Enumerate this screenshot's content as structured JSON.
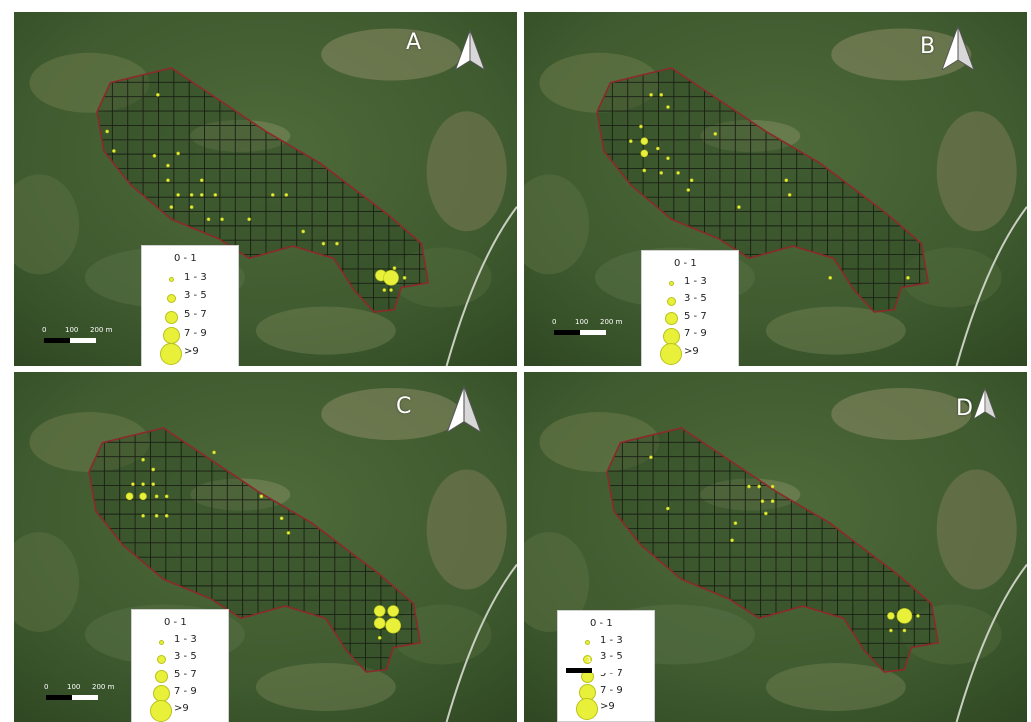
{
  "figure": {
    "panels": [
      {
        "letter": "A",
        "dots": [
          {
            "u": 0.03,
            "v": 0.26,
            "cls": 1
          },
          {
            "u": 0.18,
            "v": 0.11,
            "cls": 1
          },
          {
            "u": 0.05,
            "v": 0.34,
            "cls": 1
          },
          {
            "u": 0.17,
            "v": 0.36,
            "cls": 1
          },
          {
            "u": 0.24,
            "v": 0.35,
            "cls": 1
          },
          {
            "u": 0.21,
            "v": 0.4,
            "cls": 1
          },
          {
            "u": 0.21,
            "v": 0.46,
            "cls": 1
          },
          {
            "u": 0.24,
            "v": 0.52,
            "cls": 1
          },
          {
            "u": 0.28,
            "v": 0.52,
            "cls": 1
          },
          {
            "u": 0.31,
            "v": 0.52,
            "cls": 1
          },
          {
            "u": 0.35,
            "v": 0.52,
            "cls": 1
          },
          {
            "u": 0.22,
            "v": 0.57,
            "cls": 1
          },
          {
            "u": 0.28,
            "v": 0.57,
            "cls": 1
          },
          {
            "u": 0.31,
            "v": 0.46,
            "cls": 1
          },
          {
            "u": 0.33,
            "v": 0.62,
            "cls": 1
          },
          {
            "u": 0.37,
            "v": 0.62,
            "cls": 1
          },
          {
            "u": 0.45,
            "v": 0.62,
            "cls": 1
          },
          {
            "u": 0.52,
            "v": 0.52,
            "cls": 1
          },
          {
            "u": 0.56,
            "v": 0.52,
            "cls": 1
          },
          {
            "u": 0.61,
            "v": 0.67,
            "cls": 1
          },
          {
            "u": 0.67,
            "v": 0.72,
            "cls": 1
          },
          {
            "u": 0.71,
            "v": 0.72,
            "cls": 1
          },
          {
            "u": 0.86,
            "v": 0.86,
            "cls": 1
          },
          {
            "u": 0.88,
            "v": 0.82,
            "cls": 1
          },
          {
            "u": 0.84,
            "v": 0.85,
            "cls": 3
          },
          {
            "u": 0.87,
            "v": 0.86,
            "cls": 4
          },
          {
            "u": 0.91,
            "v": 0.86,
            "cls": 1
          },
          {
            "u": 0.85,
            "v": 0.91,
            "cls": 1
          },
          {
            "u": 0.87,
            "v": 0.91,
            "cls": 1
          }
        ]
      },
      {
        "letter": "B",
        "dots": [
          {
            "u": 0.16,
            "v": 0.11,
            "cls": 1
          },
          {
            "u": 0.19,
            "v": 0.11,
            "cls": 1
          },
          {
            "u": 0.21,
            "v": 0.16,
            "cls": 1
          },
          {
            "u": 0.13,
            "v": 0.24,
            "cls": 1
          },
          {
            "u": 0.1,
            "v": 0.3,
            "cls": 1
          },
          {
            "u": 0.14,
            "v": 0.3,
            "cls": 2
          },
          {
            "u": 0.14,
            "v": 0.35,
            "cls": 2
          },
          {
            "u": 0.18,
            "v": 0.33,
            "cls": 1
          },
          {
            "u": 0.21,
            "v": 0.37,
            "cls": 1
          },
          {
            "u": 0.19,
            "v": 0.43,
            "cls": 1
          },
          {
            "u": 0.24,
            "v": 0.43,
            "cls": 1
          },
          {
            "u": 0.28,
            "v": 0.46,
            "cls": 1
          },
          {
            "u": 0.14,
            "v": 0.42,
            "cls": 1
          },
          {
            "u": 0.27,
            "v": 0.5,
            "cls": 1
          },
          {
            "u": 0.35,
            "v": 0.27,
            "cls": 1
          },
          {
            "u": 0.42,
            "v": 0.57,
            "cls": 1
          },
          {
            "u": 0.56,
            "v": 0.46,
            "cls": 1
          },
          {
            "u": 0.57,
            "v": 0.52,
            "cls": 1
          },
          {
            "u": 0.4,
            "v": 0.86,
            "cls": 1
          },
          {
            "u": 0.69,
            "v": 0.86,
            "cls": 1
          },
          {
            "u": 0.92,
            "v": 0.86,
            "cls": 1
          }
        ]
      },
      {
        "letter": "C",
        "dots": [
          {
            "u": 0.16,
            "v": 0.13,
            "cls": 1
          },
          {
            "u": 0.19,
            "v": 0.17,
            "cls": 1
          },
          {
            "u": 0.13,
            "v": 0.23,
            "cls": 1
          },
          {
            "u": 0.16,
            "v": 0.23,
            "cls": 1
          },
          {
            "u": 0.19,
            "v": 0.23,
            "cls": 1
          },
          {
            "u": 0.12,
            "v": 0.28,
            "cls": 2
          },
          {
            "u": 0.16,
            "v": 0.28,
            "cls": 2
          },
          {
            "u": 0.2,
            "v": 0.28,
            "cls": 1
          },
          {
            "u": 0.23,
            "v": 0.28,
            "cls": 1
          },
          {
            "u": 0.16,
            "v": 0.36,
            "cls": 1
          },
          {
            "u": 0.2,
            "v": 0.36,
            "cls": 1
          },
          {
            "u": 0.23,
            "v": 0.36,
            "cls": 1
          },
          {
            "u": 0.37,
            "v": 0.1,
            "cls": 1
          },
          {
            "u": 0.51,
            "v": 0.28,
            "cls": 1
          },
          {
            "u": 0.57,
            "v": 0.37,
            "cls": 1
          },
          {
            "u": 0.59,
            "v": 0.43,
            "cls": 1
          },
          {
            "u": 0.86,
            "v": 0.75,
            "cls": 3
          },
          {
            "u": 0.9,
            "v": 0.75,
            "cls": 3
          },
          {
            "u": 0.86,
            "v": 0.8,
            "cls": 3
          },
          {
            "u": 0.9,
            "v": 0.81,
            "cls": 4
          },
          {
            "u": 0.86,
            "v": 0.86,
            "cls": 1
          }
        ]
      },
      {
        "letter": "D",
        "dots": [
          {
            "u": 0.13,
            "v": 0.12,
            "cls": 1
          },
          {
            "u": 0.42,
            "v": 0.24,
            "cls": 1
          },
          {
            "u": 0.45,
            "v": 0.24,
            "cls": 1
          },
          {
            "u": 0.49,
            "v": 0.24,
            "cls": 1
          },
          {
            "u": 0.46,
            "v": 0.3,
            "cls": 1
          },
          {
            "u": 0.49,
            "v": 0.3,
            "cls": 1
          },
          {
            "u": 0.47,
            "v": 0.35,
            "cls": 1
          },
          {
            "u": 0.38,
            "v": 0.39,
            "cls": 1
          },
          {
            "u": 0.37,
            "v": 0.46,
            "cls": 1
          },
          {
            "u": 0.18,
            "v": 0.33,
            "cls": 1
          },
          {
            "u": 0.84,
            "v": 0.77,
            "cls": 2
          },
          {
            "u": 0.88,
            "v": 0.77,
            "cls": 4
          },
          {
            "u": 0.92,
            "v": 0.77,
            "cls": 1
          },
          {
            "u": 0.84,
            "v": 0.83,
            "cls": 1
          },
          {
            "u": 0.88,
            "v": 0.83,
            "cls": 1
          }
        ]
      }
    ],
    "legend": {
      "classes": [
        {
          "label": "0 - 1",
          "r": 0
        },
        {
          "label": "1 - 3",
          "r": 1.5
        },
        {
          "label": "3 - 5",
          "r": 3.5
        },
        {
          "label": "5 - 7",
          "r": 5.5
        },
        {
          "label": ">7 - 9",
          "display": "7 - 9",
          "r": 7.5
        },
        {
          "label": ">9",
          "r": 10
        }
      ]
    },
    "scalebar": {
      "ticks": [
        "0",
        "100",
        "200 m"
      ]
    },
    "colors": {
      "dot": "#e8f03a",
      "dot_stroke": "#b9c21a",
      "boundary": "#8b2a2a",
      "grid": "#1a1f14",
      "background": "#3d5a2e"
    }
  }
}
